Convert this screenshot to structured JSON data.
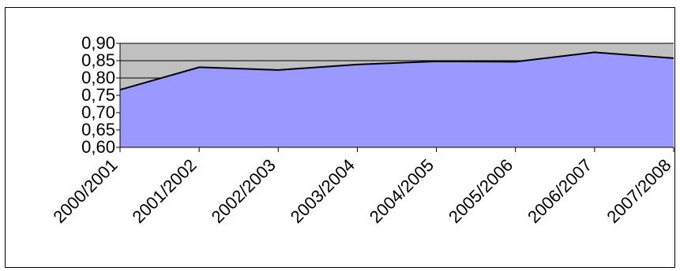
{
  "chart_data": {
    "type": "area",
    "title": "",
    "xlabel": "",
    "ylabel": "",
    "categories": [
      "2000/2001",
      "2001/2002",
      "2002/2003",
      "2003/2004",
      "2004/2005",
      "2005/2006",
      "2006/2007",
      "2007/2008"
    ],
    "series": [
      {
        "values": [
          0.766,
          0.831,
          0.823,
          0.839,
          0.848,
          0.847,
          0.874,
          0.857
        ]
      }
    ],
    "ylim": [
      0.6,
      0.9
    ],
    "yticks": [
      "0,60",
      "0,65",
      "0,70",
      "0,75",
      "0,80",
      "0,85",
      "0,90"
    ],
    "grid": true,
    "legend": "none",
    "colors": {
      "area_fill": "#9999ff",
      "plot_background": "#c0c0c0",
      "line": "#000000",
      "gridline": "#000000"
    }
  }
}
